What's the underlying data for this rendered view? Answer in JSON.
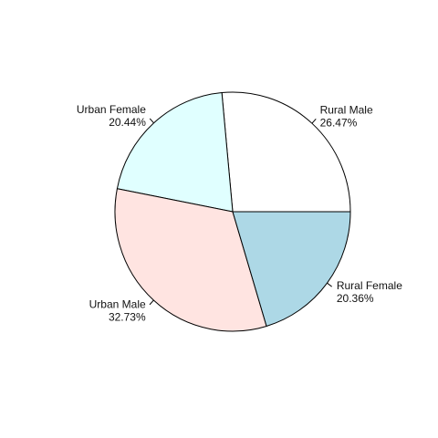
{
  "chart_data": {
    "type": "pie",
    "title": "",
    "categories": [
      "Rural Male",
      "Urban Female",
      "Urban Male",
      "Rural Female"
    ],
    "values": [
      26.47,
      20.44,
      32.73,
      20.36
    ],
    "labels": [
      {
        "name": "Rural Male",
        "percent": "26.47%"
      },
      {
        "name": "Urban Female",
        "percent": "20.44%"
      },
      {
        "name": "Urban Male",
        "percent": "32.73%"
      },
      {
        "name": "Rural Female",
        "percent": "20.36%"
      }
    ],
    "colors": [
      "#ffffff",
      "#e0ffff",
      "#ffe4e1",
      "#add8e6"
    ],
    "start_angle_deg": 0,
    "direction": "counterclockwise"
  }
}
